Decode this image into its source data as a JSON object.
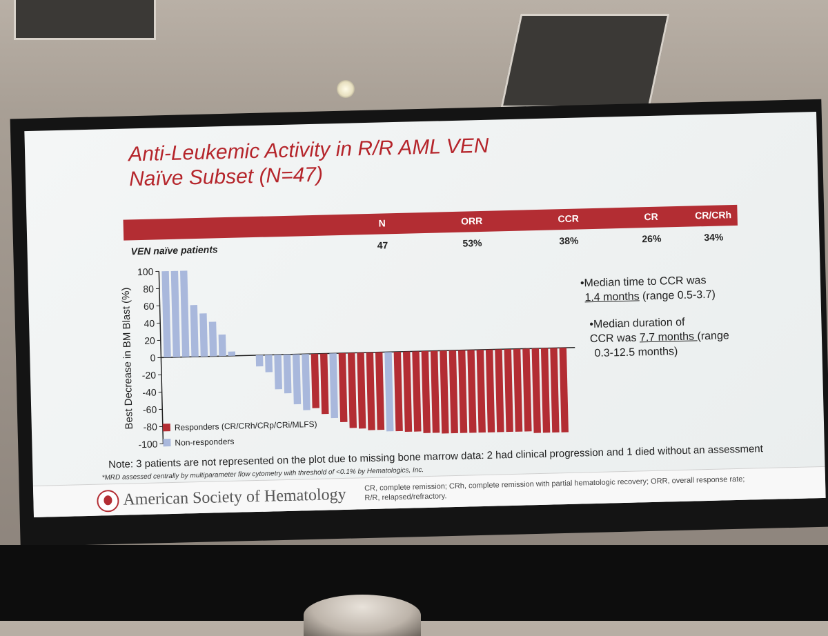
{
  "slide": {
    "title_line1": "Anti-Leukemic Activity in R/R AML VEN",
    "title_line2": "Naïve Subset (N=47)"
  },
  "table": {
    "headers": [
      "N",
      "ORR",
      "CCR",
      "CR",
      "CR/CRh"
    ],
    "row_label": "VEN naïve patients",
    "values": [
      "47",
      "53%",
      "38%",
      "26%",
      "34%"
    ]
  },
  "chart_data": {
    "type": "bar",
    "ylabel": "Best Decrease in BM Blast (%)",
    "ylim": [
      -100,
      100
    ],
    "yticks": [
      "100",
      "80",
      "60",
      "40",
      "20",
      "0",
      "-20",
      "-40",
      "-60",
      "-80",
      "-100"
    ],
    "colors": {
      "responder": "#b32d33",
      "non_responder": "#a9b8dc"
    },
    "legend": {
      "responder": "Responders (CR/CRh/CRp/CRi/MLFS)",
      "non_responder": "Non-responders"
    },
    "values": [
      100,
      100,
      100,
      60,
      50,
      40,
      25,
      5,
      0,
      0,
      -13,
      -20,
      -40,
      -45,
      -58,
      -65,
      -63,
      -70,
      -75,
      -80,
      -87,
      -88,
      -90,
      -90,
      -92,
      -92,
      -93,
      -93,
      -95,
      -95,
      -96,
      -96,
      -96,
      -96,
      -96,
      -96,
      -96,
      -96,
      -96,
      -96,
      -98,
      -98,
      -98,
      -98
    ],
    "responder": [
      false,
      false,
      false,
      false,
      false,
      false,
      false,
      false,
      false,
      false,
      false,
      false,
      false,
      false,
      false,
      false,
      true,
      true,
      false,
      true,
      true,
      true,
      true,
      true,
      false,
      true,
      true,
      true,
      true,
      true,
      true,
      true,
      true,
      true,
      true,
      true,
      true,
      true,
      true,
      true,
      true,
      true,
      true,
      true
    ]
  },
  "right_notes": {
    "note1_prefix": "•Median time to CCR was",
    "note1_underlined": "1.4 months",
    "note1_suffix": " (range 0.5-3.7)",
    "note2_prefix": "•Median duration of",
    "note2_mid": "CCR was ",
    "note2_underlined": "7.7 months ",
    "note2_suffix": "(range",
    "note2_line3": "0.3-12.5 months)"
  },
  "notes": {
    "bottom": "Note: 3 patients are not represented on the plot due to missing bone marrow data: 2 had clinical progression and 1 died without an assessment",
    "mrd": "*MRD assessed centrally by multiparameter flow cytometry with threshold of <0.1% by Hematologics, Inc."
  },
  "footer": {
    "org": "American Society of Hematology",
    "abbrev_line1": "CR, complete remission; CRh, complete remission with partial hematologic recovery; ORR, overall response rate;",
    "abbrev_line2": "R/R, relapsed/refractory."
  }
}
